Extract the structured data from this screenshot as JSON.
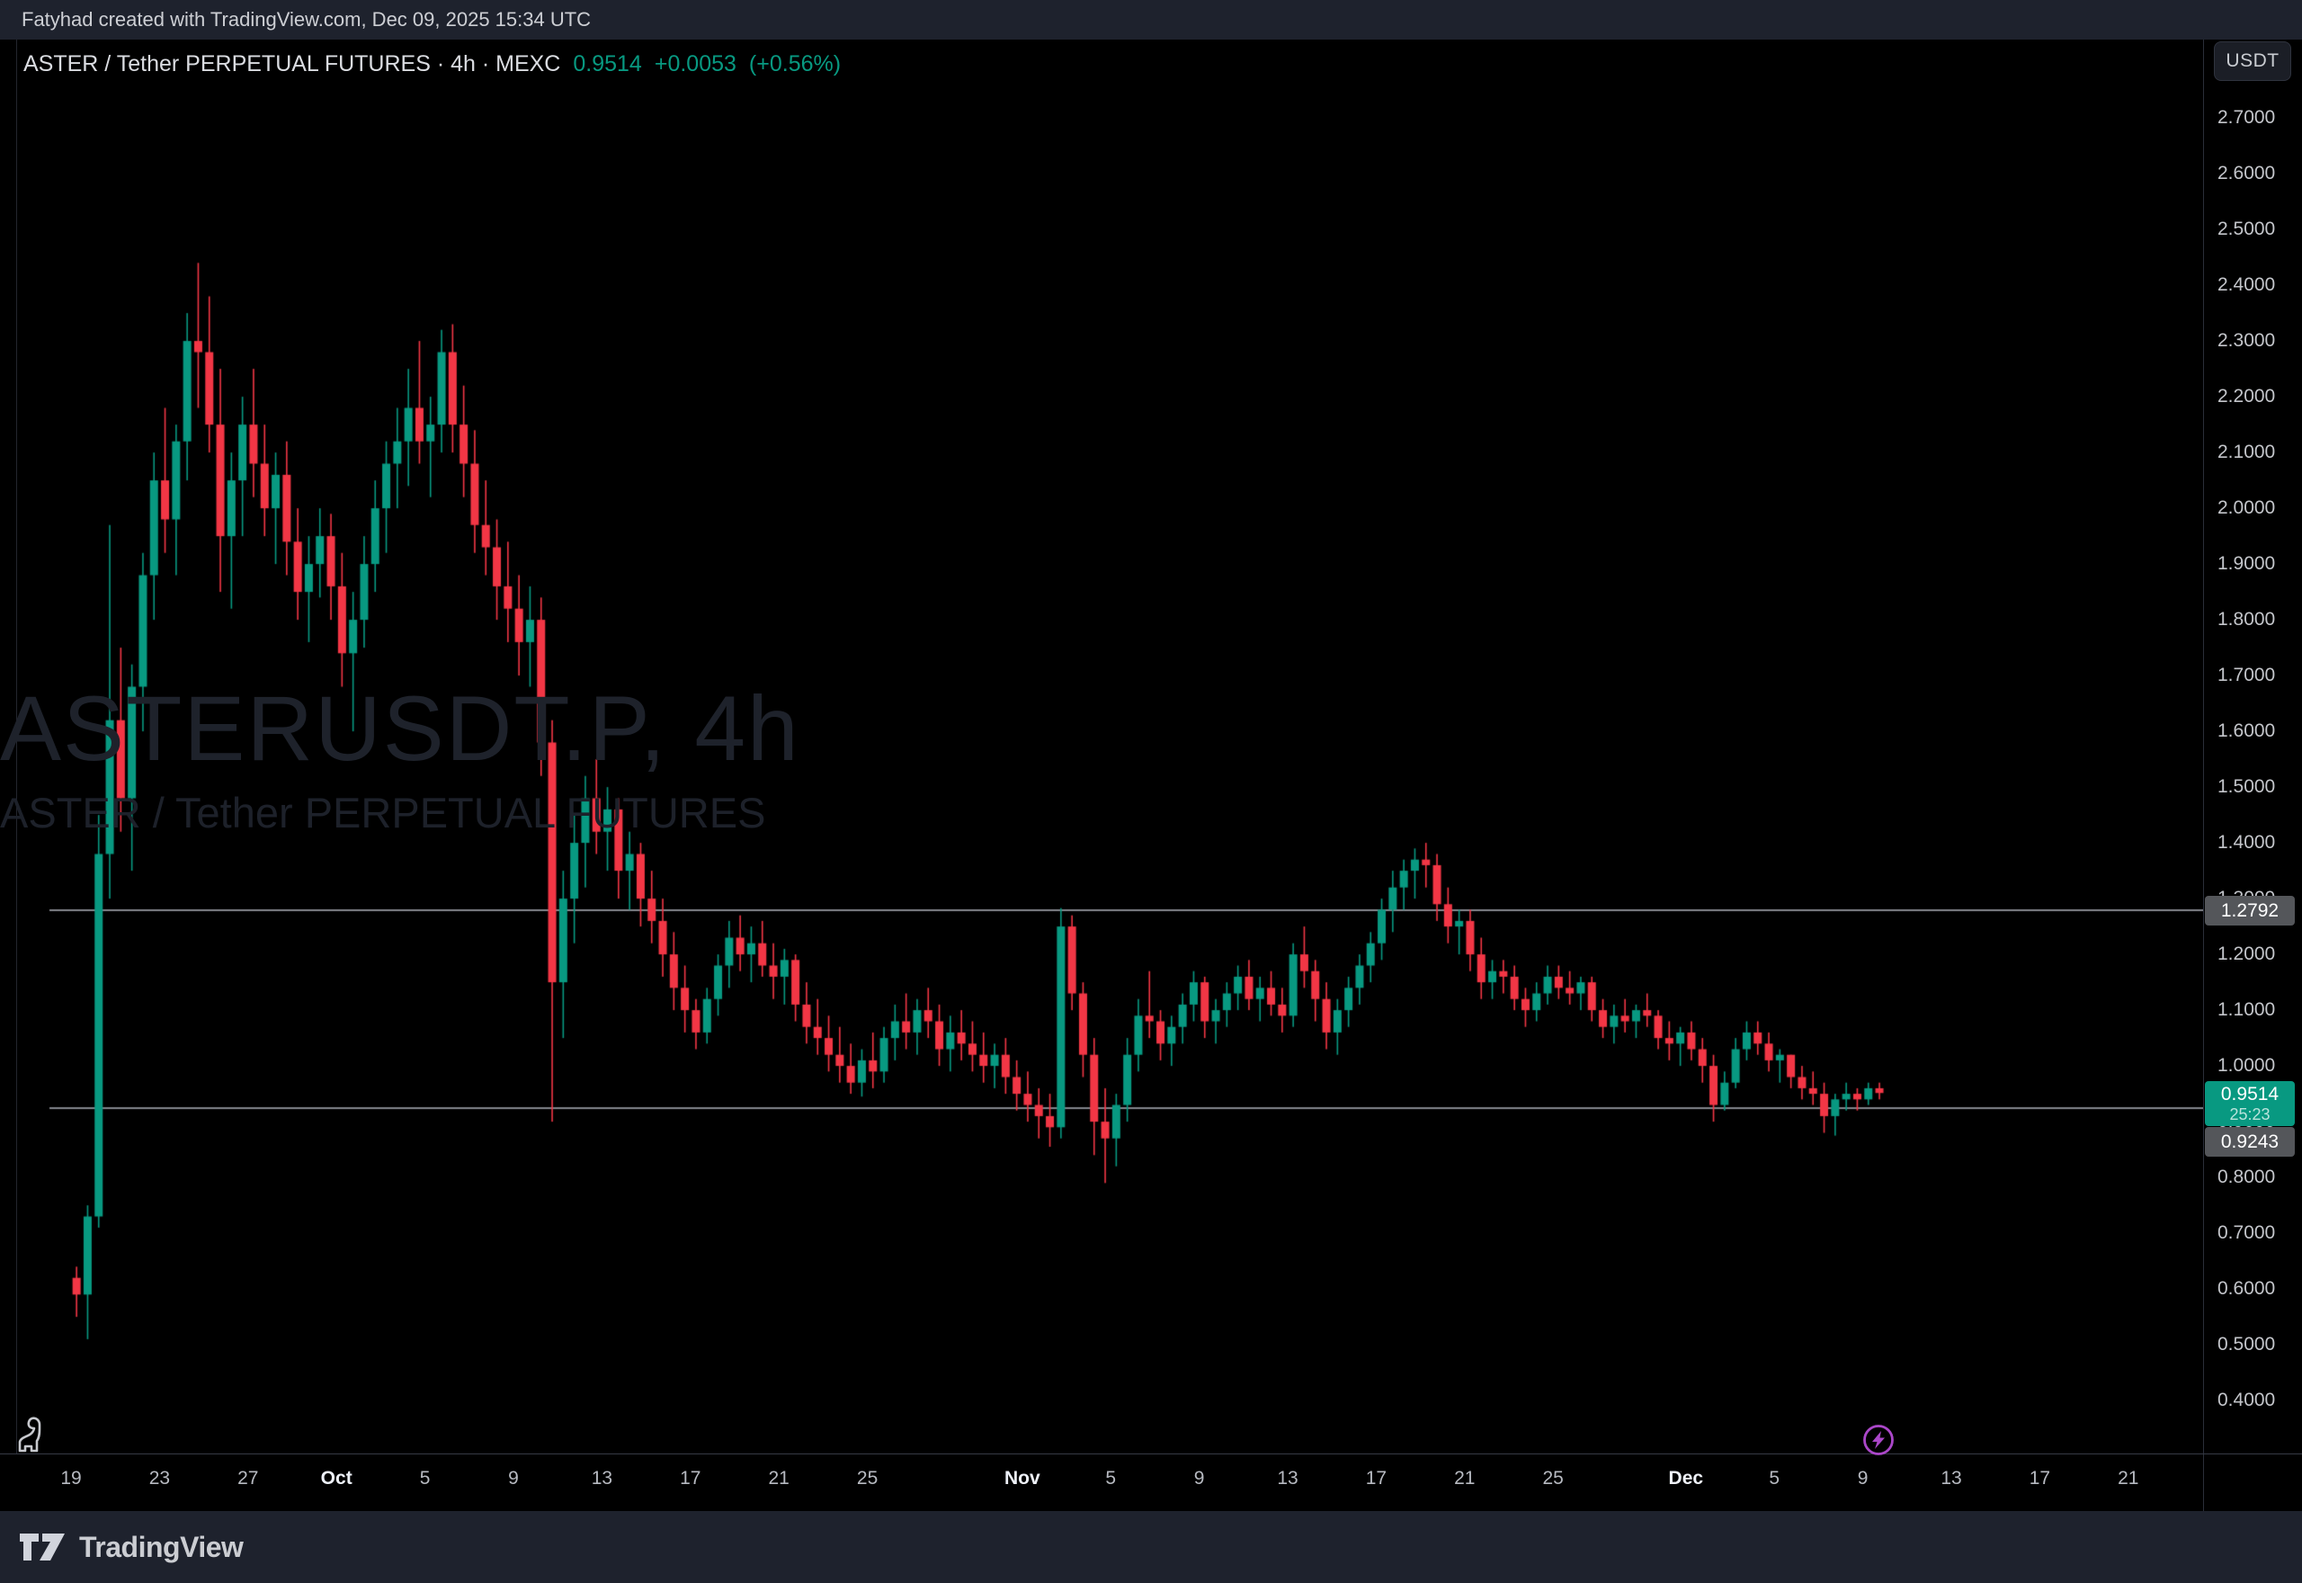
{
  "top_bar": {
    "attribution": "Fatyhad created with TradingView.com, Dec 09, 2025 15:34 UTC"
  },
  "header": {
    "symbol_title": "ASTER / Tether PERPETUAL FUTURES · 4h · MEXC",
    "last_price": "0.9514",
    "change": "+0.0053",
    "change_pct": "(+0.56%)"
  },
  "watermark": {
    "title": "ASTERUSDT.P, 4h",
    "subtitle": "ASTER / Tether PERPETUAL FUTURES"
  },
  "price_axis": {
    "unit_button": "USDT",
    "labels": [
      "2.7000",
      "2.6000",
      "2.5000",
      "2.4000",
      "2.3000",
      "2.2000",
      "2.1000",
      "2.0000",
      "1.9000",
      "1.8000",
      "1.7000",
      "1.6000",
      "1.5000",
      "1.4000",
      "1.3000",
      "1.2000",
      "1.1000",
      "1.0000",
      "0.9000",
      "0.8000",
      "0.7000",
      "0.6000",
      "0.5000",
      "0.4000"
    ],
    "hidden_by_tags": [
      "1.3000",
      "0.9000"
    ]
  },
  "price_tags": {
    "upper_level": "1.2792",
    "current_price": "0.9514",
    "countdown": "25:23",
    "lower_level": "0.9243"
  },
  "time_axis": {
    "labels": [
      {
        "text": "19",
        "day": 0,
        "type": "day"
      },
      {
        "text": "23",
        "day": 4,
        "type": "day"
      },
      {
        "text": "27",
        "day": 8,
        "type": "day"
      },
      {
        "text": "Oct",
        "day": 12,
        "type": "month"
      },
      {
        "text": "5",
        "day": 16,
        "type": "day"
      },
      {
        "text": "9",
        "day": 20,
        "type": "day"
      },
      {
        "text": "13",
        "day": 24,
        "type": "day"
      },
      {
        "text": "17",
        "day": 28,
        "type": "day"
      },
      {
        "text": "21",
        "day": 32,
        "type": "day"
      },
      {
        "text": "25",
        "day": 36,
        "type": "day"
      },
      {
        "text": "Nov",
        "day": 43,
        "type": "month"
      },
      {
        "text": "5",
        "day": 47,
        "type": "day"
      },
      {
        "text": "9",
        "day": 51,
        "type": "day"
      },
      {
        "text": "13",
        "day": 55,
        "type": "day"
      },
      {
        "text": "17",
        "day": 59,
        "type": "day"
      },
      {
        "text": "21",
        "day": 63,
        "type": "day"
      },
      {
        "text": "25",
        "day": 67,
        "type": "day"
      },
      {
        "text": "Dec",
        "day": 73,
        "type": "month"
      },
      {
        "text": "5",
        "day": 77,
        "type": "day"
      },
      {
        "text": "9",
        "day": 81,
        "type": "day"
      },
      {
        "text": "13",
        "day": 85,
        "type": "day"
      },
      {
        "text": "17",
        "day": 89,
        "type": "day"
      },
      {
        "text": "21",
        "day": 93,
        "type": "day"
      }
    ]
  },
  "footer": {
    "brand": "TradingView"
  },
  "colors": {
    "up": "#089981",
    "down": "#f23645",
    "level_line": "#84878e",
    "frame_bg": "#1e222d",
    "chart_bg": "#000000",
    "tag_gray": "#54565a",
    "tag_green": "#089981",
    "lightning_purple": "#ab47c9"
  },
  "chart_data": {
    "type": "candlestick",
    "symbol": "ASTERUSDT.P",
    "exchange": "MEXC",
    "timeframe": "4h",
    "title": "ASTER / Tether PERPETUAL FUTURES",
    "quote_currency": "USDT",
    "last_price": 0.9514,
    "change": 0.0053,
    "change_pct": 0.56,
    "bar_close_countdown": "25:23",
    "session_start": "2025-09-19 00:00 UTC",
    "session_end": "2025-12-09 16:00 UTC",
    "sampled_interval_hours": 12,
    "ylim": [
      0.35,
      2.78
    ],
    "price_gridline_step": 0.1,
    "levels": {
      "upper_ray": 1.2792,
      "lower_ray": 0.9243
    },
    "legend_position": "none",
    "grid": false,
    "candles": [
      [
        0.62,
        0.64,
        0.55,
        0.59
      ],
      [
        0.59,
        0.75,
        0.51,
        0.73
      ],
      [
        0.73,
        1.45,
        0.71,
        1.38
      ],
      [
        1.38,
        1.97,
        1.3,
        1.62
      ],
      [
        1.62,
        1.75,
        1.42,
        1.48
      ],
      [
        1.48,
        1.72,
        1.35,
        1.68
      ],
      [
        1.68,
        1.92,
        1.6,
        1.88
      ],
      [
        1.88,
        2.1,
        1.8,
        2.05
      ],
      [
        2.05,
        2.18,
        1.92,
        1.98
      ],
      [
        1.98,
        2.15,
        1.88,
        2.12
      ],
      [
        2.12,
        2.35,
        2.05,
        2.3
      ],
      [
        2.3,
        2.44,
        2.18,
        2.28
      ],
      [
        2.28,
        2.38,
        2.1,
        2.15
      ],
      [
        2.15,
        2.25,
        1.85,
        1.95
      ],
      [
        1.95,
        2.1,
        1.82,
        2.05
      ],
      [
        2.05,
        2.2,
        1.95,
        2.15
      ],
      [
        2.15,
        2.25,
        2.02,
        2.08
      ],
      [
        2.08,
        2.15,
        1.95,
        2.0
      ],
      [
        2.0,
        2.1,
        1.9,
        2.06
      ],
      [
        2.06,
        2.12,
        1.88,
        1.94
      ],
      [
        1.94,
        2.0,
        1.8,
        1.85
      ],
      [
        1.85,
        1.95,
        1.76,
        1.9
      ],
      [
        1.9,
        2.0,
        1.84,
        1.95
      ],
      [
        1.95,
        1.99,
        1.8,
        1.86
      ],
      [
        1.86,
        1.92,
        1.68,
        1.74
      ],
      [
        1.74,
        1.85,
        1.6,
        1.8
      ],
      [
        1.8,
        1.95,
        1.75,
        1.9
      ],
      [
        1.9,
        2.05,
        1.85,
        2.0
      ],
      [
        2.0,
        2.12,
        1.92,
        2.08
      ],
      [
        2.08,
        2.18,
        2.0,
        2.12
      ],
      [
        2.12,
        2.25,
        2.04,
        2.18
      ],
      [
        2.18,
        2.3,
        2.08,
        2.12
      ],
      [
        2.12,
        2.2,
        2.02,
        2.15
      ],
      [
        2.15,
        2.32,
        2.1,
        2.28
      ],
      [
        2.28,
        2.33,
        2.1,
        2.15
      ],
      [
        2.15,
        2.22,
        2.02,
        2.08
      ],
      [
        2.08,
        2.14,
        1.92,
        1.97
      ],
      [
        1.97,
        2.05,
        1.88,
        1.93
      ],
      [
        1.93,
        1.98,
        1.8,
        1.86
      ],
      [
        1.86,
        1.94,
        1.76,
        1.82
      ],
      [
        1.82,
        1.88,
        1.7,
        1.76
      ],
      [
        1.76,
        1.86,
        1.68,
        1.8
      ],
      [
        1.8,
        1.84,
        1.52,
        1.58
      ],
      [
        1.58,
        1.62,
        0.9,
        1.15
      ],
      [
        1.15,
        1.35,
        1.05,
        1.3
      ],
      [
        1.3,
        1.45,
        1.22,
        1.4
      ],
      [
        1.4,
        1.52,
        1.32,
        1.48
      ],
      [
        1.48,
        1.55,
        1.38,
        1.42
      ],
      [
        1.42,
        1.5,
        1.35,
        1.46
      ],
      [
        1.46,
        1.48,
        1.3,
        1.35
      ],
      [
        1.35,
        1.42,
        1.28,
        1.38
      ],
      [
        1.38,
        1.4,
        1.25,
        1.3
      ],
      [
        1.3,
        1.35,
        1.22,
        1.26
      ],
      [
        1.26,
        1.3,
        1.16,
        1.2
      ],
      [
        1.2,
        1.24,
        1.1,
        1.14
      ],
      [
        1.14,
        1.18,
        1.06,
        1.1
      ],
      [
        1.1,
        1.12,
        1.03,
        1.06
      ],
      [
        1.06,
        1.14,
        1.04,
        1.12
      ],
      [
        1.12,
        1.2,
        1.09,
        1.18
      ],
      [
        1.18,
        1.26,
        1.14,
        1.23
      ],
      [
        1.23,
        1.27,
        1.17,
        1.2
      ],
      [
        1.2,
        1.25,
        1.15,
        1.22
      ],
      [
        1.22,
        1.26,
        1.16,
        1.18
      ],
      [
        1.18,
        1.22,
        1.12,
        1.16
      ],
      [
        1.16,
        1.21,
        1.11,
        1.19
      ],
      [
        1.19,
        1.2,
        1.08,
        1.11
      ],
      [
        1.11,
        1.15,
        1.04,
        1.07
      ],
      [
        1.07,
        1.12,
        1.02,
        1.05
      ],
      [
        1.05,
        1.09,
        0.99,
        1.02
      ],
      [
        1.02,
        1.07,
        0.97,
        1.0
      ],
      [
        1.0,
        1.04,
        0.95,
        0.97
      ],
      [
        0.97,
        1.03,
        0.945,
        1.01
      ],
      [
        1.01,
        1.06,
        0.96,
        0.99
      ],
      [
        0.99,
        1.07,
        0.97,
        1.05
      ],
      [
        1.05,
        1.11,
        1.01,
        1.08
      ],
      [
        1.08,
        1.13,
        1.03,
        1.06
      ],
      [
        1.06,
        1.12,
        1.02,
        1.1
      ],
      [
        1.1,
        1.14,
        1.05,
        1.08
      ],
      [
        1.08,
        1.11,
        1.0,
        1.03
      ],
      [
        1.03,
        1.09,
        0.99,
        1.06
      ],
      [
        1.06,
        1.1,
        1.01,
        1.04
      ],
      [
        1.04,
        1.08,
        0.99,
        1.02
      ],
      [
        1.02,
        1.06,
        0.97,
        1.0
      ],
      [
        1.0,
        1.04,
        0.96,
        1.02
      ],
      [
        1.02,
        1.05,
        0.95,
        0.98
      ],
      [
        0.98,
        1.01,
        0.92,
        0.95
      ],
      [
        0.95,
        0.99,
        0.9,
        0.93
      ],
      [
        0.93,
        0.96,
        0.87,
        0.91
      ],
      [
        0.91,
        0.95,
        0.855,
        0.89
      ],
      [
        0.89,
        1.283,
        0.87,
        1.25
      ],
      [
        1.25,
        1.27,
        1.1,
        1.13
      ],
      [
        1.13,
        1.15,
        0.98,
        1.02
      ],
      [
        1.02,
        1.05,
        0.84,
        0.9
      ],
      [
        0.9,
        0.96,
        0.79,
        0.87
      ],
      [
        0.87,
        0.95,
        0.82,
        0.93
      ],
      [
        0.93,
        1.05,
        0.9,
        1.02
      ],
      [
        1.02,
        1.12,
        0.99,
        1.09
      ],
      [
        1.09,
        1.17,
        1.05,
        1.08
      ],
      [
        1.08,
        1.1,
        1.01,
        1.04
      ],
      [
        1.04,
        1.09,
        1.0,
        1.07
      ],
      [
        1.07,
        1.13,
        1.04,
        1.11
      ],
      [
        1.11,
        1.17,
        1.08,
        1.15
      ],
      [
        1.15,
        1.16,
        1.05,
        1.08
      ],
      [
        1.08,
        1.12,
        1.04,
        1.1
      ],
      [
        1.1,
        1.15,
        1.07,
        1.13
      ],
      [
        1.13,
        1.18,
        1.1,
        1.16
      ],
      [
        1.16,
        1.19,
        1.1,
        1.12
      ],
      [
        1.12,
        1.16,
        1.08,
        1.14
      ],
      [
        1.14,
        1.17,
        1.09,
        1.11
      ],
      [
        1.11,
        1.14,
        1.06,
        1.09
      ],
      [
        1.09,
        1.22,
        1.07,
        1.2
      ],
      [
        1.2,
        1.25,
        1.14,
        1.17
      ],
      [
        1.17,
        1.19,
        1.08,
        1.12
      ],
      [
        1.12,
        1.15,
        1.03,
        1.06
      ],
      [
        1.06,
        1.12,
        1.02,
        1.1
      ],
      [
        1.1,
        1.16,
        1.07,
        1.14
      ],
      [
        1.14,
        1.2,
        1.11,
        1.18
      ],
      [
        1.18,
        1.24,
        1.15,
        1.22
      ],
      [
        1.22,
        1.3,
        1.19,
        1.28
      ],
      [
        1.28,
        1.35,
        1.24,
        1.32
      ],
      [
        1.32,
        1.37,
        1.28,
        1.35
      ],
      [
        1.35,
        1.39,
        1.3,
        1.37
      ],
      [
        1.37,
        1.4,
        1.32,
        1.36
      ],
      [
        1.36,
        1.38,
        1.26,
        1.29
      ],
      [
        1.29,
        1.32,
        1.22,
        1.25
      ],
      [
        1.25,
        1.28,
        1.2,
        1.26
      ],
      [
        1.26,
        1.28,
        1.17,
        1.2
      ],
      [
        1.2,
        1.23,
        1.12,
        1.15
      ],
      [
        1.15,
        1.19,
        1.12,
        1.17
      ],
      [
        1.17,
        1.19,
        1.13,
        1.16
      ],
      [
        1.16,
        1.18,
        1.1,
        1.12
      ],
      [
        1.12,
        1.14,
        1.07,
        1.1
      ],
      [
        1.1,
        1.15,
        1.08,
        1.13
      ],
      [
        1.13,
        1.18,
        1.11,
        1.16
      ],
      [
        1.16,
        1.18,
        1.12,
        1.14
      ],
      [
        1.14,
        1.17,
        1.11,
        1.13
      ],
      [
        1.13,
        1.16,
        1.1,
        1.15
      ],
      [
        1.15,
        1.16,
        1.08,
        1.1
      ],
      [
        1.1,
        1.12,
        1.05,
        1.07
      ],
      [
        1.07,
        1.11,
        1.04,
        1.09
      ],
      [
        1.09,
        1.12,
        1.06,
        1.08
      ],
      [
        1.08,
        1.11,
        1.05,
        1.1
      ],
      [
        1.1,
        1.13,
        1.07,
        1.09
      ],
      [
        1.09,
        1.1,
        1.03,
        1.05
      ],
      [
        1.05,
        1.08,
        1.01,
        1.04
      ],
      [
        1.04,
        1.07,
        1.0,
        1.06
      ],
      [
        1.06,
        1.08,
        1.01,
        1.03
      ],
      [
        1.03,
        1.05,
        0.97,
        1.0
      ],
      [
        1.0,
        1.02,
        0.9,
        0.93
      ],
      [
        0.93,
        0.99,
        0.92,
        0.97
      ],
      [
        0.97,
        1.05,
        0.96,
        1.03
      ],
      [
        1.03,
        1.08,
        1.01,
        1.06
      ],
      [
        1.06,
        1.08,
        1.02,
        1.04
      ],
      [
        1.04,
        1.06,
        0.99,
        1.01
      ],
      [
        1.01,
        1.03,
        0.97,
        1.02
      ],
      [
        1.02,
        1.02,
        0.96,
        0.98
      ],
      [
        0.98,
        1.0,
        0.94,
        0.96
      ],
      [
        0.96,
        0.99,
        0.93,
        0.95
      ],
      [
        0.95,
        0.97,
        0.88,
        0.91
      ],
      [
        0.91,
        0.95,
        0.875,
        0.94
      ],
      [
        0.94,
        0.97,
        0.92,
        0.95
      ],
      [
        0.95,
        0.96,
        0.92,
        0.94
      ],
      [
        0.94,
        0.97,
        0.93,
        0.96
      ],
      [
        0.96,
        0.97,
        0.94,
        0.9514
      ]
    ]
  }
}
